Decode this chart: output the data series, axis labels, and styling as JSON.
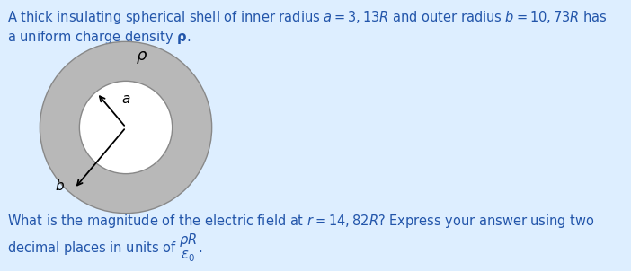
{
  "bg_color": "#ddeeff",
  "title_line1": "A thick insulating spherical shell of inner radius $a = 3,13R$ and outer radius $b = 10,73R$ has",
  "title_line2": "a uniform charge density $\\mathbf{\\rho}$.",
  "question_line1": "What is the magnitude of the electric field at $r = 14,82R$? Express your answer using two",
  "question_line2": "decimal places in units of $\\dfrac{\\rho R}{\\varepsilon_0}$.",
  "outer_color": "#b8b8b8",
  "inner_color": "#ffffff",
  "bg_circle_color": "#ddeeff",
  "rho_label": "$\\rho$",
  "a_label": "a",
  "b_label": "b",
  "text_color": "#2255aa",
  "title_fontsize": 10.5,
  "question_fontsize": 10.5,
  "circle_edge_color": "#888888",
  "arrow_color": "#000000",
  "label_color": "#000000"
}
